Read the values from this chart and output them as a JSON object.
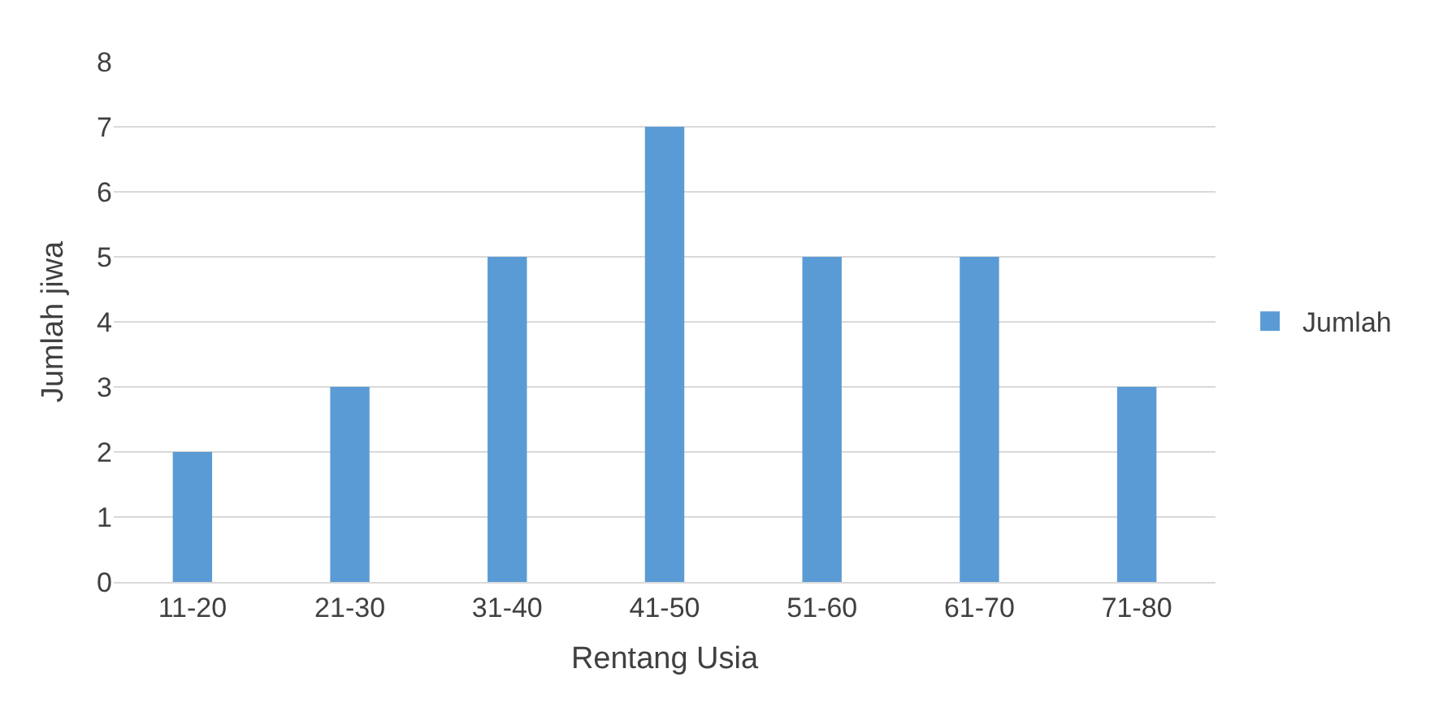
{
  "chart_data": {
    "type": "bar",
    "xlabel": "Rentang Usia",
    "ylabel": "Jumlah jiwa",
    "categories": [
      "11-20",
      "21-30",
      "31-40",
      "41-50",
      "51-60",
      "61-70",
      "71-80"
    ],
    "series": [
      {
        "name": "Jumlah",
        "color": "#5b9bd5",
        "values": [
          2,
          3,
          5,
          7,
          5,
          5,
          3
        ]
      }
    ],
    "ylim": [
      0,
      8
    ],
    "yticks": [
      0,
      1,
      2,
      3,
      4,
      5,
      6,
      7,
      8
    ],
    "grid": "y",
    "legend": "right"
  }
}
